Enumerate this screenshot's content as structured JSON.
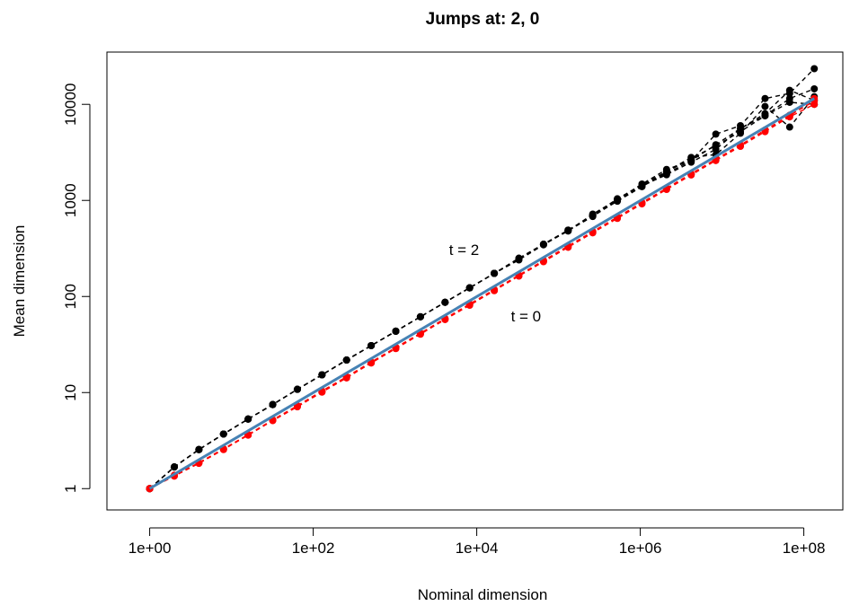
{
  "chart_data": {
    "type": "line",
    "title": "Jumps at: 2, 0",
    "xlabel": "Nominal dimension",
    "ylabel": "Mean dimension",
    "x_scale": "log",
    "y_scale": "log",
    "xlim": [
      0.3,
      300000000
    ],
    "ylim": [
      0.6,
      35000
    ],
    "x_ticks": [
      1,
      100,
      10000,
      1000000,
      100000000
    ],
    "x_tick_labels": [
      "1e+00",
      "1e+02",
      "1e+04",
      "1e+06",
      "1e+08"
    ],
    "y_ticks": [
      1,
      10,
      100,
      1000,
      10000
    ],
    "y_tick_labels": [
      "1",
      "10",
      "100",
      "1000",
      "10000"
    ],
    "grid": false,
    "annotations": [
      {
        "text": "t = 2",
        "x": 7000,
        "y": 270
      },
      {
        "text": "t = 0",
        "x": 40000,
        "y": 55
      }
    ],
    "series": [
      {
        "color": "#000000",
        "style": "dashed-points",
        "x": [
          1,
          2,
          4,
          8,
          16,
          32,
          64,
          128,
          256,
          512,
          1024,
          2048,
          4096,
          8192,
          16384,
          32768,
          65536,
          131072,
          262144,
          524288,
          1048576,
          2097152,
          4194304,
          8388608,
          16777216,
          33554432,
          67108864,
          134217728
        ],
        "y": [
          1,
          1.68,
          2.55,
          3.7,
          5.3,
          7.5,
          10.8,
          15.3,
          21.8,
          30.8,
          43.5,
          61.5,
          87,
          123,
          174,
          246,
          348,
          490,
          690,
          980,
          1390,
          1970,
          2750,
          3700,
          5200,
          7600,
          11500,
          14500
        ]
      },
      {
        "color": "#000000",
        "style": "dashed-points",
        "x": [
          1,
          2,
          4,
          8,
          16,
          32,
          64,
          128,
          256,
          512,
          1024,
          2048,
          4096,
          8192,
          16384,
          32768,
          65536,
          131072,
          262144,
          524288,
          1048576,
          2097152,
          4194304,
          8388608,
          16777216,
          33554432,
          67108864,
          134217728
        ],
        "y": [
          1,
          1.68,
          2.55,
          3.7,
          5.3,
          7.5,
          10.8,
          15.3,
          21.8,
          30.8,
          43.5,
          61.5,
          87,
          123,
          174,
          250,
          350,
          480,
          720,
          1020,
          1480,
          2100,
          2600,
          4900,
          6000,
          11500,
          13000,
          23500
        ]
      },
      {
        "color": "#000000",
        "style": "dashed-points",
        "x": [
          1,
          2,
          4,
          8,
          16,
          32,
          64,
          128,
          256,
          512,
          1024,
          2048,
          4096,
          8192,
          16384,
          32768,
          65536,
          131072,
          262144,
          524288,
          1048576,
          2097152,
          4194304,
          8388608,
          16777216,
          33554432,
          67108864,
          134217728
        ],
        "y": [
          1,
          1.68,
          2.55,
          3.7,
          5.3,
          7.5,
          10.8,
          15.3,
          21.8,
          30.8,
          43.5,
          61.5,
          87,
          123,
          174,
          240,
          345,
          485,
          680,
          1000,
          1420,
          1850,
          2500,
          3400,
          5600,
          7600,
          10500,
          10000
        ]
      },
      {
        "color": "#000000",
        "style": "dashed-points",
        "x": [
          1,
          2,
          4,
          8,
          16,
          32,
          64,
          128,
          256,
          512,
          1024,
          2048,
          4096,
          8192,
          16384,
          32768,
          65536,
          131072,
          262144,
          524288,
          1048576,
          2097152,
          4194304,
          8388608,
          16777216,
          33554432,
          67108864,
          134217728
        ],
        "y": [
          1,
          1.68,
          2.55,
          3.7,
          5.3,
          7.5,
          10.8,
          15.3,
          21.8,
          30.8,
          43.5,
          61.5,
          87,
          123,
          174,
          245,
          350,
          490,
          700,
          1040,
          1450,
          2000,
          2800,
          3000,
          5000,
          9500,
          5800,
          12000
        ]
      },
      {
        "color": "#000000",
        "style": "dashed-points",
        "x": [
          1,
          2,
          4,
          8,
          16,
          32,
          64,
          128,
          256,
          512,
          1024,
          2048,
          4096,
          8192,
          16384,
          32768,
          65536,
          131072,
          262144,
          524288,
          1048576,
          2097152,
          4194304,
          8388608,
          16777216,
          33554432,
          67108864,
          134217728
        ],
        "y": [
          1,
          1.68,
          2.55,
          3.7,
          5.3,
          7.5,
          10.8,
          15.3,
          21.8,
          30.8,
          43.5,
          61.5,
          87,
          123,
          174,
          250,
          350,
          490,
          700,
          1020,
          1400,
          1900,
          2600,
          3800,
          5600,
          8000,
          14000,
          11000
        ]
      },
      {
        "color": "#ff0000",
        "style": "dashed-points",
        "x": [
          1,
          2,
          4,
          8,
          16,
          32,
          64,
          128,
          256,
          512,
          1024,
          2048,
          4096,
          8192,
          16384,
          32768,
          65536,
          131072,
          262144,
          524288,
          1048576,
          2097152,
          4194304,
          8388608,
          16777216,
          33554432,
          67108864,
          134217728
        ],
        "y": [
          1,
          1.35,
          1.83,
          2.55,
          3.6,
          5.1,
          7.1,
          10.1,
          14.2,
          20.3,
          28.7,
          40.5,
          57.5,
          81,
          115,
          163,
          230,
          325,
          460,
          650,
          920,
          1300,
          1840,
          2600,
          3650,
          5200,
          7400,
          10000
        ]
      },
      {
        "color": "#ff0000",
        "style": "dashed-points",
        "x": [
          1,
          2,
          4,
          8,
          16,
          32,
          64,
          128,
          256,
          512,
          1024,
          2048,
          4096,
          8192,
          16384,
          32768,
          65536,
          131072,
          262144,
          524288,
          1048576,
          2097152,
          4194304,
          8388608,
          16777216,
          33554432,
          67108864,
          134217728
        ],
        "y": [
          1,
          1.38,
          1.86,
          2.6,
          3.65,
          5.2,
          7.3,
          10.4,
          14.6,
          20.8,
          29.5,
          41.5,
          59,
          83.5,
          118,
          167,
          237,
          335,
          475,
          670,
          950,
          1340,
          1900,
          2680,
          3780,
          5400,
          7700,
          10800
        ]
      },
      {
        "color": "#ff0000",
        "style": "dashed-points",
        "x": [
          1,
          2,
          4,
          8,
          16,
          32,
          64,
          128,
          256,
          512,
          1024,
          2048,
          4096,
          8192,
          16384,
          32768,
          65536,
          131072,
          262144,
          524288,
          1048576,
          2097152,
          4194304,
          8388608,
          16777216,
          33554432,
          67108864,
          134217728
        ],
        "y": [
          1,
          1.36,
          1.85,
          2.58,
          3.62,
          5.15,
          7.2,
          10.2,
          14.4,
          20.5,
          29,
          41,
          58,
          82,
          116,
          165,
          233,
          330,
          468,
          660,
          935,
          1320,
          1870,
          2640,
          3720,
          5300,
          7550,
          11500
        ]
      },
      {
        "color": "#4682b4",
        "style": "solid",
        "x": [
          1,
          134217728
        ],
        "y": [
          1,
          11500
        ]
      }
    ]
  }
}
